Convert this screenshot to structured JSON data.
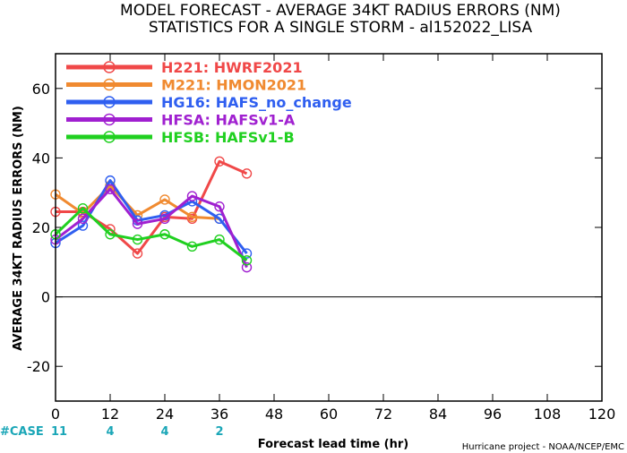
{
  "chart_data": {
    "type": "line",
    "title": "MODEL FORECAST - AVERAGE 34KT RADIUS ERRORS (NM)",
    "subtitle": "STATISTICS FOR A SINGLE STORM - al152022_LISA",
    "xlabel": "Forecast lead time (hr)",
    "ylabel": "AVERAGE 34KT RADIUS ERRORS (NM)",
    "xlim": [
      0,
      120
    ],
    "ylim": [
      -30,
      70
    ],
    "xticks": [
      0,
      12,
      24,
      36,
      48,
      60,
      72,
      84,
      96,
      108,
      120
    ],
    "yticks": [
      -20,
      0,
      20,
      40,
      60
    ],
    "zero_line": true,
    "legend_position": "top-left",
    "series": [
      {
        "name": "H221: HWRF2021",
        "color": "#f04848",
        "x": [
          0,
          6,
          12,
          18,
          24,
          30,
          36,
          42
        ],
        "values": [
          24.5,
          24.5,
          19.5,
          12.5,
          23,
          22.5,
          39,
          35.5
        ]
      },
      {
        "name": "M221: HMON2021",
        "color": "#f08a30",
        "x": [
          0,
          6,
          12,
          18,
          24,
          30,
          36
        ],
        "values": [
          29.5,
          24,
          32,
          23.5,
          28,
          23,
          22.5
        ]
      },
      {
        "name": "HG16: HAFS_no_change",
        "color": "#2f5ff0",
        "x": [
          0,
          6,
          12,
          18,
          24,
          30,
          36,
          42
        ],
        "values": [
          15.5,
          20.5,
          33.5,
          22,
          23.5,
          27.5,
          22.5,
          12.5
        ]
      },
      {
        "name": "HFSA: HAFSv1-A",
        "color": "#a020d0",
        "x": [
          0,
          6,
          12,
          18,
          24,
          30,
          36,
          42
        ],
        "values": [
          16.5,
          22.5,
          31,
          21,
          22.5,
          29,
          26,
          8.5
        ]
      },
      {
        "name": "HFSB: HAFSv1-B",
        "color": "#20d020",
        "x": [
          0,
          6,
          12,
          18,
          24,
          30,
          36,
          42
        ],
        "values": [
          18,
          25.5,
          18,
          16.5,
          18,
          14.5,
          16.5,
          10.5
        ]
      }
    ],
    "case_label": "#CASE",
    "cases": [
      {
        "x": 0,
        "n": "11"
      },
      {
        "x": 12,
        "n": "4"
      },
      {
        "x": 24,
        "n": "4"
      },
      {
        "x": 36,
        "n": "2"
      }
    ],
    "credit": "Hurricane project - NOAA/NCEP/EMC"
  }
}
